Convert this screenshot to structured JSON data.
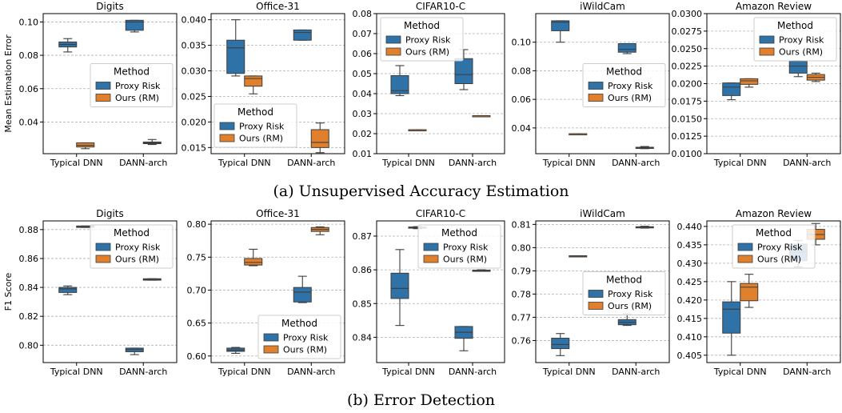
{
  "captions": {
    "a": "(a) Unsupervised Accuracy Estimation",
    "b": "(b) Error Detection"
  },
  "colors": {
    "proxy": "#2f72a8",
    "ours": "#e0802c",
    "grid": "#b0b0b0"
  },
  "chart_data": [
    {
      "type": "box",
      "row": "a",
      "title": "Digits",
      "ylabel": "Mean Estimation Error",
      "categories": [
        "Typical DNN",
        "DANN-arch"
      ],
      "ylim": [
        0.021,
        0.105
      ],
      "yticks": [
        0.04,
        0.06,
        0.08,
        0.1
      ],
      "ytick_labels": [
        "0.04",
        "0.06",
        "0.08",
        "0.10"
      ],
      "legend_title": "Method",
      "legend_pos": "center-right",
      "series": [
        {
          "name": "Proxy Risk",
          "boxes": [
            {
              "min": 0.082,
              "q1": 0.085,
              "median": 0.0865,
              "q3": 0.088,
              "max": 0.09
            },
            {
              "min": 0.094,
              "q1": 0.095,
              "median": 0.1,
              "q3": 0.101,
              "max": 0.101
            }
          ]
        },
        {
          "name": "Ours (RM)",
          "boxes": [
            {
              "min": 0.024,
              "q1": 0.025,
              "median": 0.026,
              "q3": 0.0275,
              "max": 0.0275
            },
            {
              "min": 0.0265,
              "q1": 0.027,
              "median": 0.0275,
              "q3": 0.028,
              "max": 0.0295
            }
          ]
        }
      ]
    },
    {
      "type": "box",
      "row": "a",
      "title": "Office-31",
      "ylabel": "",
      "categories": [
        "Typical DNN",
        "DANN-arch"
      ],
      "ylim": [
        0.0138,
        0.0412
      ],
      "yticks": [
        0.015,
        0.02,
        0.025,
        0.03,
        0.035,
        0.04
      ],
      "ytick_labels": [
        "0.015",
        "0.020",
        "0.025",
        "0.030",
        "0.035",
        "0.040"
      ],
      "legend_title": "Method",
      "legend_pos": "lower-center",
      "series": [
        {
          "name": "Proxy Risk",
          "boxes": [
            {
              "min": 0.029,
              "q1": 0.0295,
              "median": 0.0345,
              "q3": 0.036,
              "max": 0.04
            },
            {
              "min": 0.036,
              "q1": 0.036,
              "median": 0.0375,
              "q3": 0.038,
              "max": 0.038
            }
          ]
        },
        {
          "name": "Ours (RM)",
          "boxes": [
            {
              "min": 0.0255,
              "q1": 0.027,
              "median": 0.0285,
              "q3": 0.029,
              "max": 0.029
            },
            {
              "min": 0.014,
              "q1": 0.015,
              "median": 0.016,
              "q3": 0.0185,
              "max": 0.0198
            }
          ]
        }
      ]
    },
    {
      "type": "box",
      "row": "a",
      "title": "CIFAR10-C",
      "ylabel": "",
      "categories": [
        "Typical DNN",
        "DANN-arch"
      ],
      "ylim": [
        0.01,
        0.08
      ],
      "yticks": [
        0.01,
        0.02,
        0.03,
        0.04,
        0.05,
        0.06,
        0.07,
        0.08
      ],
      "ytick_labels": [
        "0.01",
        "0.02",
        "0.03",
        "0.04",
        "0.05",
        "0.06",
        "0.07",
        "0.08"
      ],
      "legend_title": "Method",
      "legend_pos": "top-left",
      "series": [
        {
          "name": "Proxy Risk",
          "boxes": [
            {
              "min": 0.039,
              "q1": 0.04,
              "median": 0.0415,
              "q3": 0.049,
              "max": 0.054
            },
            {
              "min": 0.042,
              "q1": 0.045,
              "median": 0.0495,
              "q3": 0.0575,
              "max": 0.062
            }
          ]
        },
        {
          "name": "Ours (RM)",
          "boxes": [
            {
              "min": 0.0215,
              "q1": 0.0215,
              "median": 0.022,
              "q3": 0.022,
              "max": 0.022
            },
            {
              "min": 0.0285,
              "q1": 0.0285,
              "median": 0.029,
              "q3": 0.029,
              "max": 0.029
            }
          ]
        }
      ]
    },
    {
      "type": "box",
      "row": "a",
      "title": "iWildCam",
      "ylabel": "",
      "categories": [
        "Typical DNN",
        "DANN-arch"
      ],
      "ylim": [
        0.022,
        0.12
      ],
      "yticks": [
        0.04,
        0.06,
        0.08,
        0.1
      ],
      "ytick_labels": [
        "0.04",
        "0.06",
        "0.08",
        "0.10"
      ],
      "legend_title": "Method",
      "legend_pos": "center-right",
      "series": [
        {
          "name": "Proxy Risk",
          "boxes": [
            {
              "min": 0.1,
              "q1": 0.108,
              "median": 0.114,
              "q3": 0.115,
              "max": 0.115
            },
            {
              "min": 0.092,
              "q1": 0.093,
              "median": 0.095,
              "q3": 0.099,
              "max": 0.099
            }
          ]
        },
        {
          "name": "Ours (RM)",
          "boxes": [
            {
              "min": 0.0355,
              "q1": 0.0355,
              "median": 0.036,
              "q3": 0.036,
              "max": 0.036
            },
            {
              "min": 0.0255,
              "q1": 0.026,
              "median": 0.026,
              "q3": 0.0265,
              "max": 0.027
            }
          ]
        }
      ]
    },
    {
      "type": "box",
      "row": "a",
      "title": "Amazon Review",
      "ylabel": "",
      "categories": [
        "Typical DNN",
        "DANN-arch"
      ],
      "ylim": [
        0.01,
        0.03
      ],
      "yticks": [
        0.01,
        0.0125,
        0.015,
        0.0175,
        0.02,
        0.0225,
        0.025,
        0.0275,
        0.03
      ],
      "ytick_labels": [
        "0.0100",
        "0.0125",
        "0.0150",
        "0.0175",
        "0.0200",
        "0.0225",
        "0.0250",
        "0.0275",
        "0.0300"
      ],
      "legend_title": "Method",
      "legend_pos": "top-right",
      "series": [
        {
          "name": "Proxy Risk",
          "boxes": [
            {
              "min": 0.0177,
              "q1": 0.0183,
              "median": 0.0195,
              "q3": 0.0201,
              "max": 0.0201
            },
            {
              "min": 0.021,
              "q1": 0.0215,
              "median": 0.0225,
              "q3": 0.0232,
              "max": 0.0233
            }
          ]
        },
        {
          "name": "Ours (RM)",
          "boxes": [
            {
              "min": 0.0195,
              "q1": 0.0199,
              "median": 0.0204,
              "q3": 0.0207,
              "max": 0.0207
            },
            {
              "min": 0.0203,
              "q1": 0.0205,
              "median": 0.0209,
              "q3": 0.0213,
              "max": 0.0215
            }
          ]
        }
      ]
    },
    {
      "type": "box",
      "row": "b",
      "title": "Digits",
      "ylabel": "F1 Score",
      "categories": [
        "Typical DNN",
        "DANN-arch"
      ],
      "ylim": [
        0.788,
        0.886
      ],
      "yticks": [
        0.8,
        0.82,
        0.84,
        0.86,
        0.88
      ],
      "ytick_labels": [
        "0.80",
        "0.82",
        "0.84",
        "0.86",
        "0.88"
      ],
      "legend_title": "Method",
      "legend_pos": "top-right",
      "series": [
        {
          "name": "Proxy Risk",
          "boxes": [
            {
              "min": 0.835,
              "q1": 0.8365,
              "median": 0.839,
              "q3": 0.84,
              "max": 0.841
            },
            {
              "min": 0.7935,
              "q1": 0.7955,
              "median": 0.797,
              "q3": 0.798,
              "max": 0.798
            }
          ]
        },
        {
          "name": "Ours (RM)",
          "boxes": [
            {
              "min": 0.8815,
              "q1": 0.8815,
              "median": 0.882,
              "q3": 0.8825,
              "max": 0.8825
            },
            {
              "min": 0.845,
              "q1": 0.845,
              "median": 0.8455,
              "q3": 0.846,
              "max": 0.846
            }
          ]
        }
      ]
    },
    {
      "type": "box",
      "row": "b",
      "title": "Office-31",
      "ylabel": "",
      "categories": [
        "Typical DNN",
        "DANN-arch"
      ],
      "ylim": [
        0.59,
        0.805
      ],
      "yticks": [
        0.6,
        0.65,
        0.7,
        0.75,
        0.8
      ],
      "ytick_labels": [
        "0.60",
        "0.65",
        "0.70",
        "0.75",
        "0.80"
      ],
      "legend_title": "Method",
      "legend_pos": "bottom-right",
      "series": [
        {
          "name": "Proxy Risk",
          "boxes": [
            {
              "min": 0.604,
              "q1": 0.607,
              "median": 0.609,
              "q3": 0.612,
              "max": 0.613
            },
            {
              "min": 0.681,
              "q1": 0.682,
              "median": 0.697,
              "q3": 0.704,
              "max": 0.721
            }
          ]
        },
        {
          "name": "Ours (RM)",
          "boxes": [
            {
              "min": 0.737,
              "q1": 0.738,
              "median": 0.742,
              "q3": 0.748,
              "max": 0.762
            },
            {
              "min": 0.784,
              "q1": 0.789,
              "median": 0.792,
              "q3": 0.795,
              "max": 0.796
            }
          ]
        }
      ]
    },
    {
      "type": "box",
      "row": "b",
      "title": "CIFAR10-C",
      "ylabel": "",
      "categories": [
        "Typical DNN",
        "DANN-arch"
      ],
      "ylim": [
        0.8325,
        0.8745
      ],
      "yticks": [
        0.84,
        0.85,
        0.86,
        0.87
      ],
      "ytick_labels": [
        "0.84",
        "0.85",
        "0.86",
        "0.87"
      ],
      "legend_title": "Method",
      "legend_pos": "top-right",
      "series": [
        {
          "name": "Proxy Risk",
          "boxes": [
            {
              "min": 0.8435,
              "q1": 0.8515,
              "median": 0.8545,
              "q3": 0.859,
              "max": 0.866
            },
            {
              "min": 0.836,
              "q1": 0.8397,
              "median": 0.8415,
              "q3": 0.8432,
              "max": 0.8432
            }
          ]
        },
        {
          "name": "Ours (RM)",
          "boxes": [
            {
              "min": 0.8722,
              "q1": 0.8724,
              "median": 0.8725,
              "q3": 0.8727,
              "max": 0.8728
            },
            {
              "min": 0.8596,
              "q1": 0.8597,
              "median": 0.8598,
              "q3": 0.8599,
              "max": 0.86
            }
          ]
        }
      ]
    },
    {
      "type": "box",
      "row": "b",
      "title": "iWildCam",
      "ylabel": "",
      "categories": [
        "Typical DNN",
        "DANN-arch"
      ],
      "ylim": [
        0.7505,
        0.8115
      ],
      "yticks": [
        0.76,
        0.77,
        0.78,
        0.79,
        0.8,
        0.81
      ],
      "ytick_labels": [
        "0.76",
        "0.77",
        "0.78",
        "0.79",
        "0.80",
        "0.81"
      ],
      "legend_title": "Method",
      "legend_pos": "center-right",
      "series": [
        {
          "name": "Proxy Risk",
          "boxes": [
            {
              "min": 0.7535,
              "q1": 0.7565,
              "median": 0.7583,
              "q3": 0.761,
              "max": 0.763
            },
            {
              "min": 0.7665,
              "q1": 0.7668,
              "median": 0.7678,
              "q3": 0.769,
              "max": 0.7715
            }
          ]
        },
        {
          "name": "Ours (RM)",
          "boxes": [
            {
              "min": 0.7963,
              "q1": 0.7963,
              "median": 0.7964,
              "q3": 0.7965,
              "max": 0.7965
            },
            {
              "min": 0.8084,
              "q1": 0.8086,
              "median": 0.8088,
              "q3": 0.809,
              "max": 0.8092
            }
          ]
        }
      ]
    },
    {
      "type": "box",
      "row": "b",
      "title": "Amazon Review",
      "ylabel": "",
      "categories": [
        "Typical DNN",
        "DANN-arch"
      ],
      "ylim": [
        0.403,
        0.4415
      ],
      "yticks": [
        0.405,
        0.41,
        0.415,
        0.42,
        0.425,
        0.43,
        0.435,
        0.44
      ],
      "ytick_labels": [
        "0.405",
        "0.410",
        "0.415",
        "0.420",
        "0.425",
        "0.430",
        "0.435",
        "0.440"
      ],
      "legend_title": "Method",
      "legend_pos": "top-center",
      "series": [
        {
          "name": "Proxy Risk",
          "boxes": [
            {
              "min": 0.405,
              "q1": 0.411,
              "median": 0.4175,
              "q3": 0.4195,
              "max": 0.425
            },
            {
              "min": 0.429,
              "q1": 0.4307,
              "median": 0.433,
              "q3": 0.4352,
              "max": 0.4362
            }
          ]
        },
        {
          "name": "Ours (RM)",
          "boxes": [
            {
              "min": 0.418,
              "q1": 0.4198,
              "median": 0.4235,
              "q3": 0.4245,
              "max": 0.427
            },
            {
              "min": 0.435,
              "q1": 0.4365,
              "median": 0.4378,
              "q3": 0.4392,
              "max": 0.4408
            }
          ]
        }
      ]
    }
  ]
}
